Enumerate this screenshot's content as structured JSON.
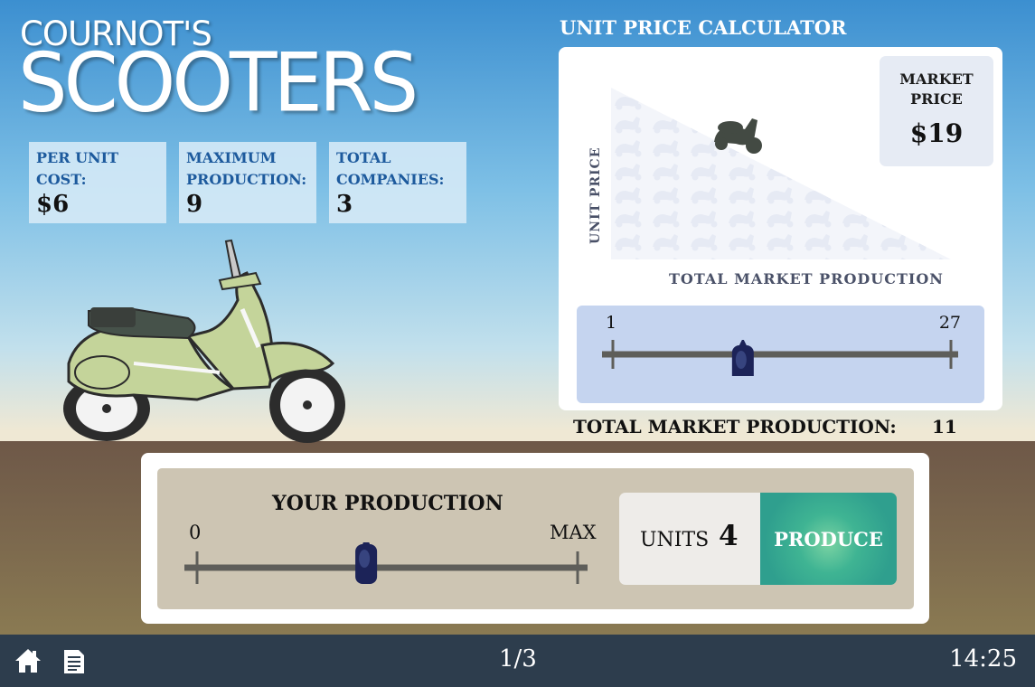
{
  "header": {
    "logo_top": "COURNOT'S",
    "logo_main": "SCOOTERS"
  },
  "stats": [
    {
      "label": "PER UNIT COST:",
      "value": "$6"
    },
    {
      "label": "MAXIMUM PRODUCTION:",
      "value": "9"
    },
    {
      "label": "TOTAL COMPANIES:",
      "value": "3"
    }
  ],
  "calculator": {
    "title": "UNIT PRICE CALCULATOR",
    "price_label": "MARKET PRICE",
    "price_value": "$19",
    "y_axis_label": "UNIT PRICE",
    "x_axis_label": "TOTAL MARKET PRODUCTION",
    "slider_min": "1",
    "slider_max": "27",
    "slider_value": 11
  },
  "total_market": {
    "label": "TOTAL MARKET PRODUCTION:",
    "value": "11"
  },
  "production": {
    "title": "YOUR PRODUCTION",
    "min_label": "0",
    "max_label": "MAX",
    "units_label": "UNITS",
    "units_value": "4",
    "max_units": 9,
    "produce_label": "PRODUCE"
  },
  "footer": {
    "page": "1/3",
    "time": "14:25",
    "icons": [
      "home-icon",
      "document-icon"
    ]
  },
  "colors": {
    "accent_teal": "#2f9f8e",
    "stat_label_blue": "#1d5a9d",
    "slider_knob_navy": "#1c2358",
    "scooter_green": "#c4d49a",
    "bar_dark": "#2d3d4d"
  }
}
